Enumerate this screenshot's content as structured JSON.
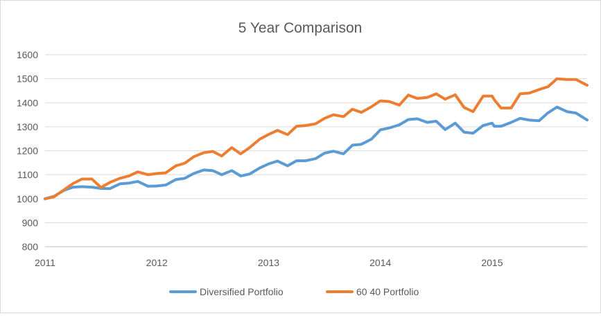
{
  "chart_data": {
    "type": "line",
    "title": "5 Year Comparison",
    "xlabel": "",
    "ylabel": "",
    "x_ticks": [
      "2011",
      "2012",
      "2013",
      "2014",
      "2015"
    ],
    "x_range": [
      2011,
      2015.85
    ],
    "ylim": [
      800,
      1600
    ],
    "y_ticks": [
      800,
      900,
      1000,
      1100,
      1200,
      1300,
      1400,
      1500,
      1600
    ],
    "grid": "horizontal",
    "legend_position": "bottom",
    "series": [
      {
        "name": "Diversified Portfolio",
        "color": "#5B9BD5",
        "points": [
          [
            2011.0,
            1000
          ],
          [
            2011.08,
            1010
          ],
          [
            2011.17,
            1035
          ],
          [
            2011.25,
            1048
          ],
          [
            2011.33,
            1050
          ],
          [
            2011.42,
            1048
          ],
          [
            2011.5,
            1043
          ],
          [
            2011.58,
            1042
          ],
          [
            2011.67,
            1062
          ],
          [
            2011.75,
            1065
          ],
          [
            2011.83,
            1072
          ],
          [
            2011.92,
            1052
          ],
          [
            2012.0,
            1053
          ],
          [
            2012.08,
            1057
          ],
          [
            2012.17,
            1080
          ],
          [
            2012.25,
            1085
          ],
          [
            2012.33,
            1105
          ],
          [
            2012.42,
            1120
          ],
          [
            2012.5,
            1117
          ],
          [
            2012.58,
            1100
          ],
          [
            2012.67,
            1117
          ],
          [
            2012.75,
            1095
          ],
          [
            2012.83,
            1103
          ],
          [
            2012.92,
            1128
          ],
          [
            2013.0,
            1145
          ],
          [
            2013.08,
            1157
          ],
          [
            2013.17,
            1137
          ],
          [
            2013.25,
            1158
          ],
          [
            2013.33,
            1158
          ],
          [
            2013.42,
            1167
          ],
          [
            2013.5,
            1190
          ],
          [
            2013.58,
            1198
          ],
          [
            2013.67,
            1187
          ],
          [
            2013.75,
            1223
          ],
          [
            2013.83,
            1227
          ],
          [
            2013.92,
            1248
          ],
          [
            2014.0,
            1287
          ],
          [
            2014.08,
            1295
          ],
          [
            2014.17,
            1308
          ],
          [
            2014.25,
            1330
          ],
          [
            2014.33,
            1333
          ],
          [
            2014.42,
            1318
          ],
          [
            2014.5,
            1323
          ],
          [
            2014.58,
            1288
          ],
          [
            2014.67,
            1315
          ],
          [
            2014.75,
            1277
          ],
          [
            2014.83,
            1273
          ],
          [
            2014.92,
            1305
          ],
          [
            2015.0,
            1315
          ],
          [
            2015.02,
            1302
          ],
          [
            2015.08,
            1302
          ],
          [
            2015.17,
            1318
          ],
          [
            2015.25,
            1335
          ],
          [
            2015.33,
            1328
          ],
          [
            2015.42,
            1325
          ],
          [
            2015.5,
            1358
          ],
          [
            2015.58,
            1382
          ],
          [
            2015.67,
            1363
          ],
          [
            2015.75,
            1357
          ],
          [
            2015.85,
            1328
          ]
        ]
      },
      {
        "name": "60 40 Portfolio",
        "color": "#ED7D31",
        "points": [
          [
            2011.0,
            1000
          ],
          [
            2011.08,
            1008
          ],
          [
            2011.17,
            1037
          ],
          [
            2011.25,
            1063
          ],
          [
            2011.33,
            1082
          ],
          [
            2011.42,
            1082
          ],
          [
            2011.5,
            1047
          ],
          [
            2011.58,
            1068
          ],
          [
            2011.67,
            1085
          ],
          [
            2011.75,
            1095
          ],
          [
            2011.83,
            1112
          ],
          [
            2011.92,
            1100
          ],
          [
            2012.0,
            1105
          ],
          [
            2012.08,
            1108
          ],
          [
            2012.17,
            1137
          ],
          [
            2012.25,
            1148
          ],
          [
            2012.33,
            1175
          ],
          [
            2012.42,
            1192
          ],
          [
            2012.5,
            1197
          ],
          [
            2012.58,
            1178
          ],
          [
            2012.67,
            1213
          ],
          [
            2012.75,
            1187
          ],
          [
            2012.83,
            1213
          ],
          [
            2012.92,
            1248
          ],
          [
            2013.0,
            1268
          ],
          [
            2013.08,
            1285
          ],
          [
            2013.17,
            1267
          ],
          [
            2013.25,
            1302
          ],
          [
            2013.33,
            1305
          ],
          [
            2013.42,
            1312
          ],
          [
            2013.5,
            1335
          ],
          [
            2013.58,
            1350
          ],
          [
            2013.67,
            1342
          ],
          [
            2013.75,
            1373
          ],
          [
            2013.83,
            1360
          ],
          [
            2013.92,
            1383
          ],
          [
            2014.0,
            1408
          ],
          [
            2014.08,
            1405
          ],
          [
            2014.17,
            1390
          ],
          [
            2014.25,
            1432
          ],
          [
            2014.33,
            1418
          ],
          [
            2014.42,
            1422
          ],
          [
            2014.5,
            1437
          ],
          [
            2014.58,
            1415
          ],
          [
            2014.67,
            1433
          ],
          [
            2014.75,
            1380
          ],
          [
            2014.83,
            1363
          ],
          [
            2014.92,
            1428
          ],
          [
            2015.0,
            1428
          ],
          [
            2015.02,
            1412
          ],
          [
            2015.08,
            1378
          ],
          [
            2015.17,
            1378
          ],
          [
            2015.25,
            1437
          ],
          [
            2015.33,
            1440
          ],
          [
            2015.42,
            1455
          ],
          [
            2015.5,
            1467
          ],
          [
            2015.58,
            1500
          ],
          [
            2015.67,
            1497
          ],
          [
            2015.75,
            1497
          ],
          [
            2015.85,
            1473
          ]
        ]
      }
    ]
  }
}
